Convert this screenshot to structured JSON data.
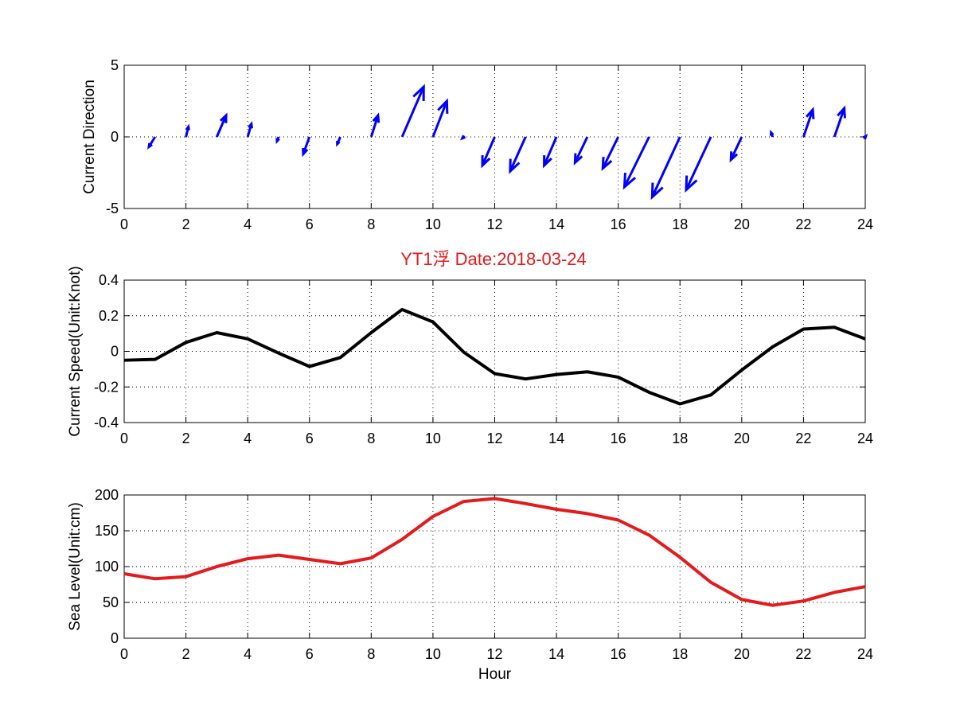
{
  "figure_title": "YT1浮  Date:2018-03-24",
  "title_color": "#e41a1c",
  "chart_data": [
    {
      "type": "quiver",
      "ylabel": "Current Direction",
      "xlabel": "",
      "xlim": [
        0,
        24
      ],
      "ylim": [
        -5,
        5
      ],
      "xticks": [
        "0",
        "2",
        "4",
        "6",
        "8",
        "10",
        "12",
        "14",
        "16",
        "18",
        "20",
        "22",
        "24"
      ],
      "yticks": [
        "-5",
        "0",
        "5"
      ],
      "grid": true,
      "color": "#0000ff",
      "series": [
        {
          "x": [
            1,
            2,
            3,
            4,
            5,
            6,
            7,
            8,
            9,
            10,
            11,
            12,
            13,
            14,
            15,
            16,
            17,
            18,
            19,
            20,
            21,
            22,
            23,
            24
          ],
          "u": [
            -0.2,
            0.08,
            0.3,
            0.12,
            -0.05,
            -0.2,
            -0.1,
            0.22,
            0.7,
            0.45,
            -0.05,
            -0.4,
            -0.5,
            -0.4,
            -0.4,
            -0.5,
            -0.8,
            -0.9,
            -0.8,
            -0.35,
            -0.05,
            0.3,
            0.32,
            0.02
          ],
          "v": [
            -0.7,
            0.7,
            1.5,
            0.9,
            -0.3,
            -1.2,
            -0.5,
            1.5,
            3.5,
            2.5,
            -0.1,
            -2.0,
            -2.4,
            -2.0,
            -1.8,
            -2.2,
            -3.5,
            -4.2,
            -3.7,
            -1.6,
            0.3,
            1.9,
            2.0,
            0.05
          ]
        }
      ]
    },
    {
      "type": "line",
      "ylabel": "Current Speed(Unit:Knot)",
      "xlabel": "",
      "xlim": [
        0,
        24
      ],
      "ylim": [
        -0.4,
        0.4
      ],
      "xticks": [
        "0",
        "2",
        "4",
        "6",
        "8",
        "10",
        "12",
        "14",
        "16",
        "18",
        "20",
        "22",
        "24"
      ],
      "yticks": [
        "-0.4",
        "-0.2",
        "0",
        "0.2",
        "0.4"
      ],
      "grid": true,
      "color": "#000000",
      "series": [
        {
          "x": [
            0,
            1,
            2,
            3,
            4,
            5,
            6,
            7,
            8,
            9,
            10,
            11,
            12,
            13,
            14,
            15,
            16,
            17,
            18,
            19,
            20,
            21,
            22,
            23,
            24
          ],
          "y": [
            -0.05,
            -0.045,
            0.05,
            0.105,
            0.07,
            -0.01,
            -0.085,
            -0.035,
            0.105,
            0.235,
            0.165,
            -0.005,
            -0.125,
            -0.155,
            -0.13,
            -0.115,
            -0.145,
            -0.23,
            -0.295,
            -0.245,
            -0.105,
            0.025,
            0.125,
            0.135,
            0.07
          ]
        }
      ]
    },
    {
      "type": "line",
      "ylabel": "Sea Level(Unit:cm)",
      "xlabel": "Hour",
      "xlim": [
        0,
        24
      ],
      "ylim": [
        0,
        200
      ],
      "xticks": [
        "0",
        "2",
        "4",
        "6",
        "8",
        "10",
        "12",
        "14",
        "16",
        "18",
        "20",
        "22",
        "24"
      ],
      "yticks": [
        "0",
        "50",
        "100",
        "150",
        "200"
      ],
      "grid": true,
      "color": "#e41a1c",
      "series": [
        {
          "x": [
            0,
            1,
            2,
            3,
            4,
            5,
            6,
            7,
            8,
            9,
            10,
            11,
            12,
            13,
            14,
            15,
            16,
            17,
            18,
            19,
            20,
            21,
            22,
            23,
            24
          ],
          "y": [
            90,
            83,
            86,
            100,
            111,
            116,
            110,
            104,
            112,
            138,
            170,
            191,
            195,
            188,
            180,
            174,
            165,
            144,
            113,
            78,
            54,
            46,
            52,
            64,
            72
          ]
        }
      ]
    }
  ]
}
